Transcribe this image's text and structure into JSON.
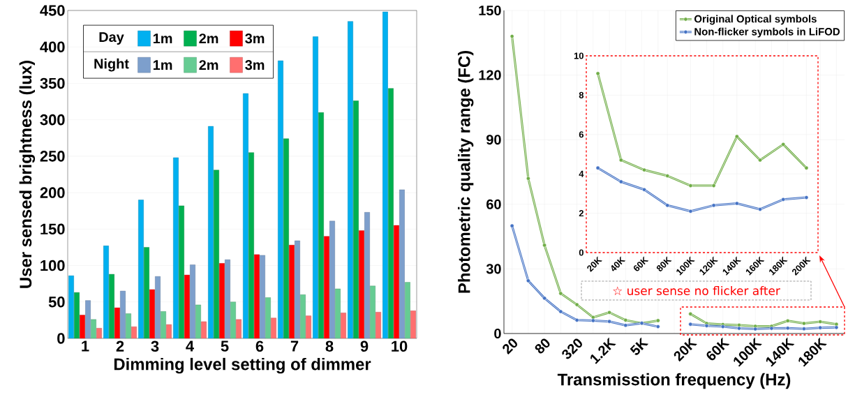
{
  "chart_data": [
    {
      "type": "bar",
      "xlabel": "Dimming level setting of dimmer",
      "ylabel": "User sensed brightness (lux)",
      "categories": [
        "1",
        "2",
        "3",
        "4",
        "5",
        "6",
        "7",
        "8",
        "9",
        "10"
      ],
      "series": [
        {
          "name": "1m",
          "color": "#00b0f0",
          "values": [
            86,
            127,
            190,
            248,
            291,
            336,
            381,
            414,
            435,
            448
          ]
        },
        {
          "name": "2m",
          "color": "#00b050",
          "values": [
            63,
            88,
            125,
            182,
            231,
            255,
            274,
            310,
            326,
            343
          ]
        },
        {
          "name": "3m",
          "color": "#ff0000",
          "values": [
            32,
            42,
            67,
            87,
            103,
            115,
            128,
            140,
            148,
            155
          ]
        },
        {
          "name": "1m",
          "color": "#7d9fcc",
          "values": [
            52,
            65,
            85,
            101,
            108,
            114,
            134,
            161,
            173,
            204
          ]
        },
        {
          "name": "2m",
          "color": "#66cc93",
          "values": [
            26,
            34,
            37,
            46,
            50,
            56,
            60,
            68,
            72,
            77
          ]
        },
        {
          "name": "3m",
          "color": "#ff6f6f",
          "values": [
            14,
            16,
            19,
            23,
            26,
            28,
            31,
            35,
            36,
            38
          ]
        }
      ],
      "ylim": [
        0,
        450
      ],
      "yticks": [
        0,
        50,
        100,
        150,
        200,
        250,
        300,
        350,
        400,
        450
      ],
      "grid": "y",
      "legend": "top left",
      "annotations": [
        "Day",
        "Night"
      ]
    },
    {
      "type": "line",
      "xlabel": "Transmisstion frequency (Hz)",
      "ylabel": "Photometric quality range (FC)",
      "categories": [
        "20",
        null,
        "80",
        null,
        "320",
        null,
        "1.2K",
        null,
        "5K",
        null,
        null,
        "20K",
        null,
        "60K",
        null,
        "100K",
        null,
        "140K",
        null,
        "180K",
        null
      ],
      "series": [
        {
          "name": "Original Optical symbols",
          "color": "#70ad47",
          "values": [
            138,
            72,
            41,
            18.6,
            13.4,
            7.5,
            9.8,
            6.2,
            4.8,
            6,
            null,
            9.1,
            4.7,
            4.2,
            3.9,
            3.4,
            3.4,
            5.9,
            4.7,
            5.5,
            4.3
          ]
        },
        {
          "name": "Non-flicker symbols in LiFOD",
          "color": "#4472c4",
          "values": [
            50,
            24.5,
            16.4,
            10.2,
            6.2,
            6,
            5.6,
            3.8,
            4.8,
            3.2,
            null,
            4.3,
            3.6,
            3.2,
            2.4,
            2.1,
            2.4,
            2.5,
            2.2,
            2.7,
            2.8
          ]
        }
      ],
      "ylim": [
        0,
        150
      ],
      "yticks": [
        0,
        30,
        60,
        90,
        120,
        150
      ],
      "grid": true,
      "legend": "top right",
      "marker": "circle",
      "annotations": [
        "☆ user sense no flicker after"
      ]
    },
    {
      "type": "line",
      "categories": [
        "20K",
        "40K",
        "60K",
        "80K",
        "100K",
        "120K",
        "140K",
        "160K",
        "180K",
        "200K"
      ],
      "series": [
        {
          "color": "#70ad47",
          "values": [
            9.1,
            4.7,
            4.2,
            3.9,
            3.4,
            3.4,
            5.9,
            4.7,
            5.5,
            4.3
          ]
        },
        {
          "color": "#4472c4",
          "values": [
            4.3,
            3.6,
            3.2,
            2.4,
            2.1,
            2.4,
            2.5,
            2.2,
            2.7,
            2.8
          ]
        }
      ],
      "ylim": [
        0,
        10
      ],
      "yticks": [
        0,
        2,
        4,
        6,
        8,
        10
      ],
      "grid": true,
      "marker": "circle"
    }
  ]
}
